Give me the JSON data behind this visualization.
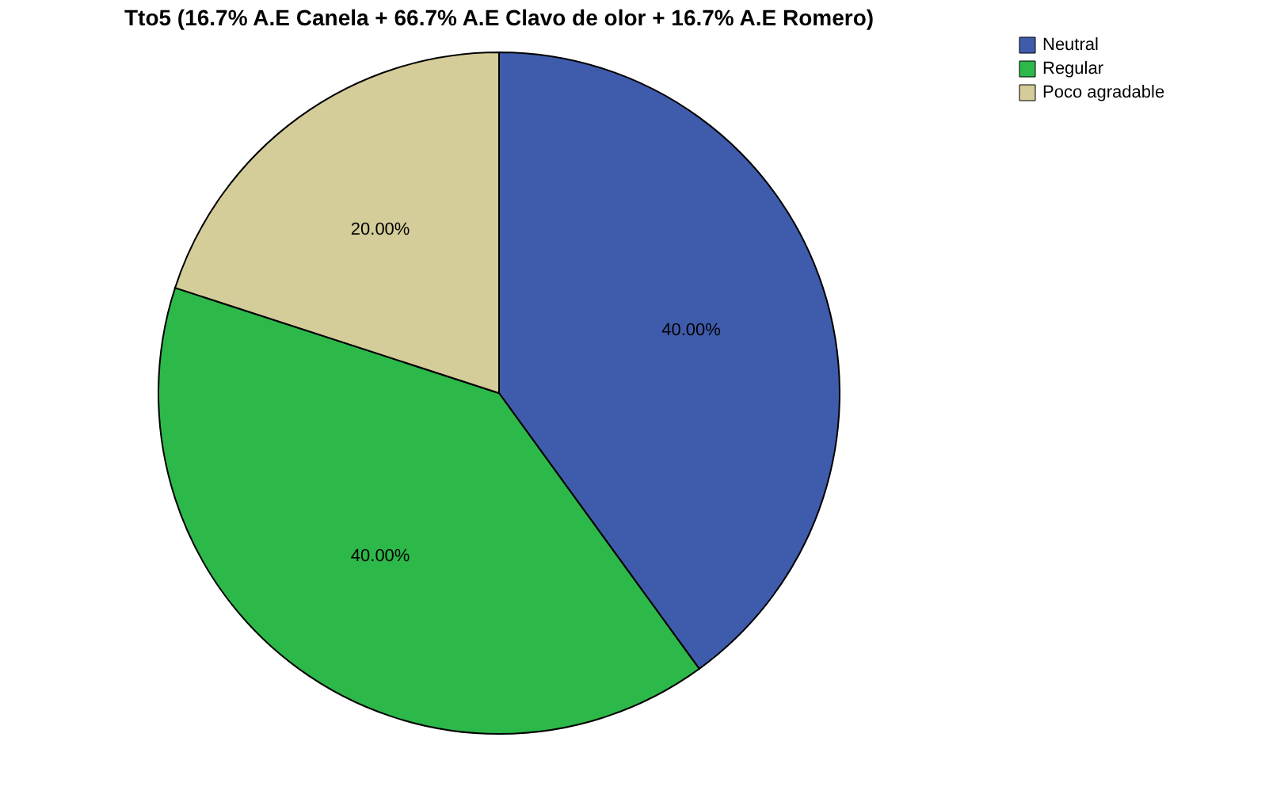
{
  "chart_data": {
    "type": "pie",
    "title": "Tto5 (16.7% A.E Canela + 66.7% A.E Clavo de olor + 16.7% A.E Romero)",
    "categories": [
      "Neutral",
      "Regular",
      "Poco agradable"
    ],
    "values": [
      40,
      40,
      20
    ],
    "colors": [
      "#3f5bab",
      "#2db84a",
      "#d4cc99"
    ],
    "value_labels": [
      "40.00%",
      "40.00%",
      "20.00%"
    ],
    "legend": "top right"
  }
}
